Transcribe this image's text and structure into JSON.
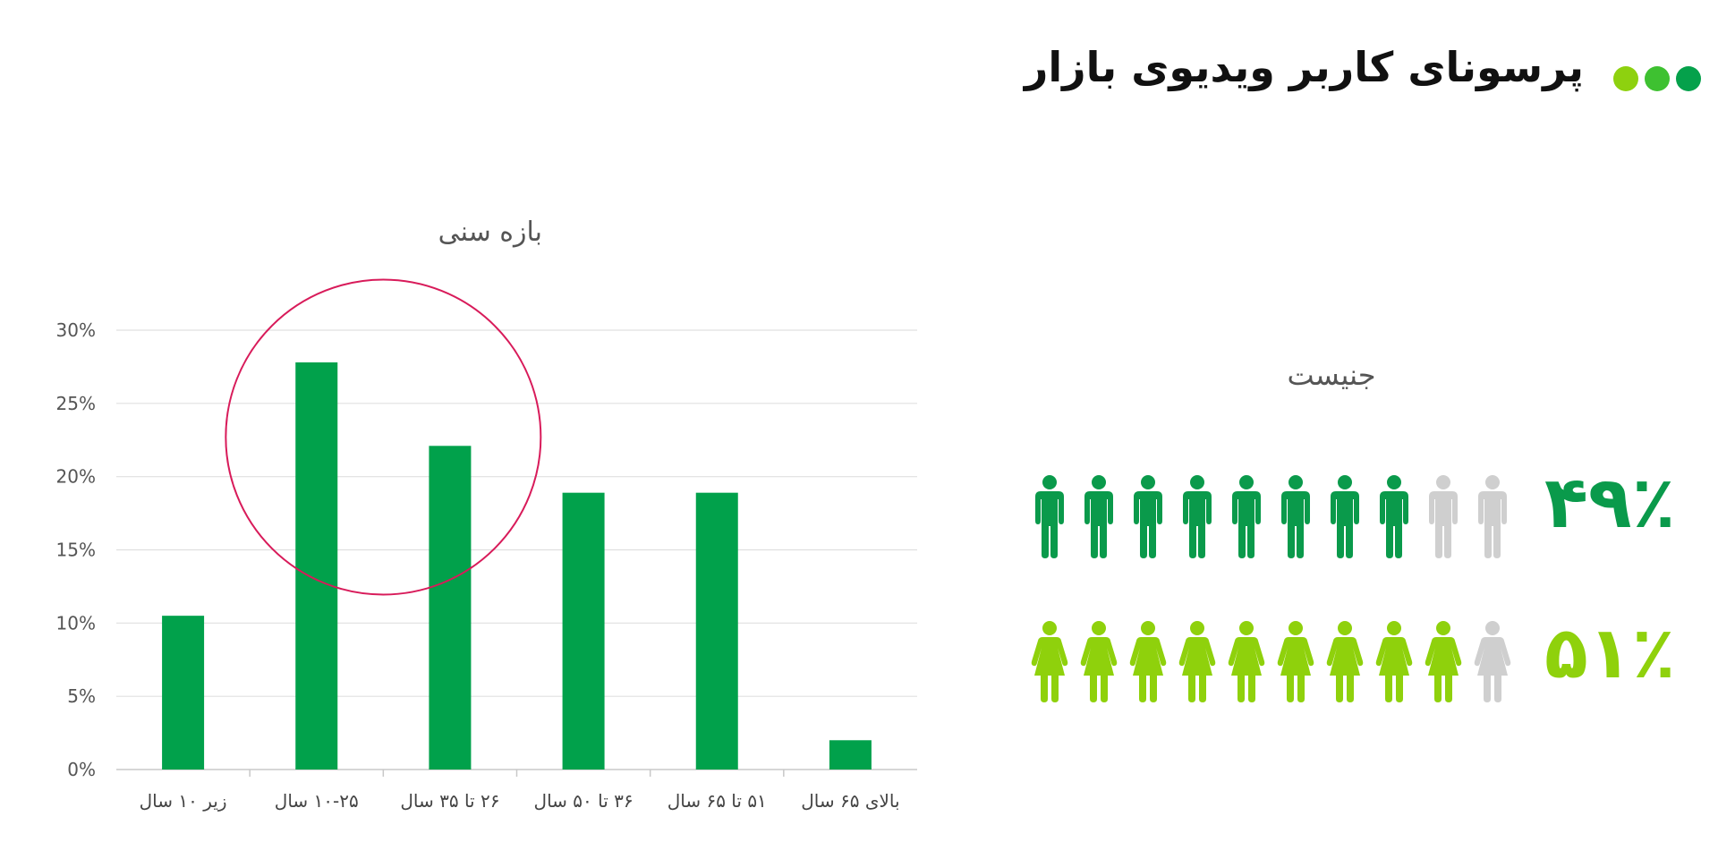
{
  "header": {
    "title": "پرسونای کاربر ویدیوی بازار",
    "dots": [
      "#8ed10f",
      "#3ec131",
      "#05a14b"
    ]
  },
  "colors": {
    "bar": "#01a14b",
    "male": "#0a9a4b",
    "female": "#8fd10c",
    "inactive": "#cfcfcf",
    "highlight_circle": "#d81b5a"
  },
  "chart_data": {
    "type": "bar",
    "title": "بازه سنی",
    "categories": [
      "زیر ۱۰ سال",
      "۱۰-۲۵ سال",
      "۲۶ تا ۳۵ سال",
      "۳۶ تا ۵۰ سال",
      "۵۱ تا ۶۵ سال",
      "بالای ۶۵ سال"
    ],
    "values": [
      10.5,
      27.8,
      22.1,
      18.9,
      18.9,
      2.0
    ],
    "yticks": [
      "0%",
      "5%",
      "10%",
      "15%",
      "20%",
      "25%",
      "30%"
    ],
    "ylim": [
      0,
      30
    ],
    "grid": true,
    "annotation": "circle highlighting ۱۰-۲۵ and ۲۶ تا ۳۵ age groups"
  },
  "gender": {
    "title": "جنیست",
    "male": {
      "percent": "۴۹٪",
      "icons_total": 10,
      "icons_active": 8,
      "icon": "male-person-icon"
    },
    "female": {
      "percent": "۵۱٪",
      "icons_total": 10,
      "icons_active": 9,
      "icon": "female-person-icon"
    }
  }
}
